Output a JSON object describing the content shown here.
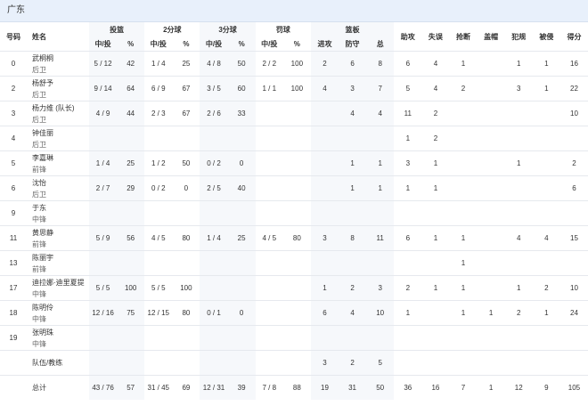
{
  "header": {
    "title": "广东"
  },
  "table": {
    "number_header": "号码",
    "name_header": "姓名",
    "groups": [
      {
        "label": "投篮",
        "subs": [
          "中/投",
          "%"
        ]
      },
      {
        "label": "2分球",
        "subs": [
          "中/投",
          "%"
        ]
      },
      {
        "label": "3分球",
        "subs": [
          "中/投",
          "%"
        ]
      },
      {
        "label": "罚球",
        "subs": [
          "中/投",
          "%"
        ]
      },
      {
        "label": "篮板",
        "subs": [
          "进攻",
          "防守",
          "总"
        ]
      }
    ],
    "singles": [
      "助攻",
      "失误",
      "抢断",
      "盖帽",
      "犯规",
      "被侵",
      "得分"
    ],
    "rows": [
      {
        "number": "0",
        "name": "武桐桐",
        "position": "后卫",
        "stats": [
          "5 / 12",
          42,
          "1 / 4",
          25,
          "4 / 8",
          50,
          "2 / 2",
          100,
          2,
          6,
          8,
          6,
          4,
          1,
          null,
          1,
          1,
          16
        ]
      },
      {
        "number": "2",
        "name": "杨舒予",
        "position": "后卫",
        "stats": [
          "9 / 14",
          64,
          "6 / 9",
          67,
          "3 / 5",
          60,
          "1 / 1",
          100,
          4,
          3,
          7,
          5,
          4,
          2,
          null,
          3,
          1,
          22
        ]
      },
      {
        "number": "3",
        "name": "杨力维 (队长)",
        "position": "后卫",
        "stats": [
          "4 / 9",
          44,
          "2 / 3",
          67,
          "2 / 6",
          33,
          null,
          null,
          null,
          4,
          4,
          11,
          2,
          null,
          null,
          null,
          null,
          10
        ]
      },
      {
        "number": "4",
        "name": "钟佳丽",
        "position": "后卫",
        "stats": [
          null,
          null,
          null,
          null,
          null,
          null,
          null,
          null,
          null,
          null,
          null,
          1,
          2,
          null,
          null,
          null,
          null,
          null
        ]
      },
      {
        "number": "5",
        "name": "李嘉琳",
        "position": "前锋",
        "stats": [
          "1 / 4",
          25,
          "1 / 2",
          50,
          "0 / 2",
          0,
          null,
          null,
          null,
          1,
          1,
          3,
          1,
          null,
          null,
          1,
          null,
          2
        ]
      },
      {
        "number": "6",
        "name": "沈怡",
        "position": "后卫",
        "stats": [
          "2 / 7",
          29,
          "0 / 2",
          0,
          "2 / 5",
          40,
          null,
          null,
          null,
          1,
          1,
          1,
          1,
          null,
          null,
          null,
          null,
          6
        ]
      },
      {
        "number": "9",
        "name": "于东",
        "position": "中锋",
        "stats": [
          null,
          null,
          null,
          null,
          null,
          null,
          null,
          null,
          null,
          null,
          null,
          null,
          null,
          null,
          null,
          null,
          null,
          null
        ]
      },
      {
        "number": "11",
        "name": "黄思静",
        "position": "前锋",
        "stats": [
          "5 / 9",
          56,
          "4 / 5",
          80,
          "1 / 4",
          25,
          "4 / 5",
          80,
          3,
          8,
          11,
          6,
          1,
          1,
          null,
          4,
          4,
          15
        ]
      },
      {
        "number": "13",
        "name": "陈丽宇",
        "position": "前锋",
        "stats": [
          null,
          null,
          null,
          null,
          null,
          null,
          null,
          null,
          null,
          null,
          null,
          null,
          null,
          1,
          null,
          null,
          null,
          null
        ]
      },
      {
        "number": "17",
        "name": "迪拉娜·迪里夏提",
        "position": "中锋",
        "stats": [
          "5 / 5",
          100,
          "5 / 5",
          100,
          null,
          null,
          null,
          null,
          1,
          2,
          3,
          2,
          1,
          1,
          null,
          1,
          2,
          10
        ]
      },
      {
        "number": "18",
        "name": "陈明伶",
        "position": "中锋",
        "stats": [
          "12 / 16",
          75,
          "12 / 15",
          80,
          "0 / 1",
          0,
          null,
          null,
          6,
          4,
          10,
          1,
          null,
          1,
          1,
          2,
          1,
          24
        ]
      },
      {
        "number": "19",
        "name": "张明珠",
        "position": "中锋",
        "stats": [
          null,
          null,
          null,
          null,
          null,
          null,
          null,
          null,
          null,
          null,
          null,
          null,
          null,
          null,
          null,
          null,
          null,
          null
        ]
      },
      {
        "number": null,
        "name": "队伍/教练",
        "position": null,
        "stats": [
          null,
          null,
          null,
          null,
          null,
          null,
          null,
          null,
          3,
          2,
          5,
          null,
          null,
          null,
          null,
          null,
          null,
          null
        ]
      },
      {
        "number": null,
        "name": "总计",
        "position": null,
        "stats": [
          "43 / 76",
          57,
          "31 / 45",
          69,
          "12 / 31",
          39,
          "7 / 8",
          88,
          19,
          31,
          50,
          36,
          16,
          7,
          1,
          12,
          9,
          105
        ]
      }
    ]
  }
}
